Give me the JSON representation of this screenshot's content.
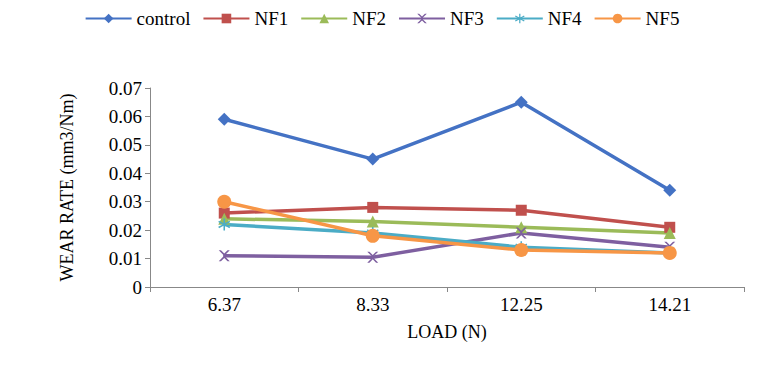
{
  "chart_data": {
    "type": "line",
    "x_label": "LOAD (N)",
    "y_label": "WEAR RATE (mm3/Nm)",
    "categories": [
      "6.37",
      "8.33",
      "12.25",
      "14.21"
    ],
    "series": [
      {
        "name": "control",
        "color": "#4472C4",
        "marker": "diamond",
        "values": [
          0.059,
          0.045,
          0.065,
          0.034
        ]
      },
      {
        "name": "NF1",
        "color": "#C0504D",
        "marker": "square",
        "values": [
          0.026,
          0.028,
          0.027,
          0.021
        ]
      },
      {
        "name": "NF2",
        "color": "#9BBB59",
        "marker": "triangle",
        "values": [
          0.024,
          0.023,
          0.021,
          0.019
        ]
      },
      {
        "name": "NF3",
        "color": "#7E5FA0",
        "marker": "x",
        "values": [
          0.011,
          0.0105,
          0.019,
          0.014
        ]
      },
      {
        "name": "NF4",
        "color": "#4BACC6",
        "marker": "asterisk",
        "values": [
          0.022,
          0.019,
          0.014,
          0.012
        ]
      },
      {
        "name": "NF5",
        "color": "#F79646",
        "marker": "circle",
        "values": [
          0.03,
          0.018,
          0.013,
          0.012
        ]
      }
    ],
    "ylim": [
      0,
      0.07
    ],
    "yticks": [
      0,
      0.01,
      0.02,
      0.03,
      0.04,
      0.05,
      0.06,
      0.07
    ],
    "grid": false,
    "legend": "top"
  }
}
